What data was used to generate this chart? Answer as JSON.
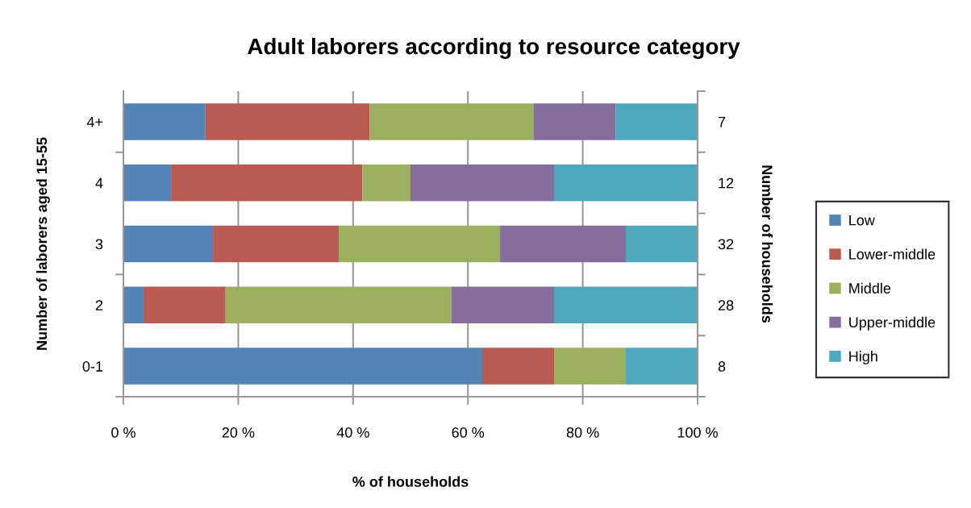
{
  "chart_data": {
    "type": "bar",
    "orientation": "horizontal",
    "stacked": true,
    "title": "Adult laborers according to resource category",
    "xlabel": "% of households",
    "ylabel": "Number of laborers aged 15-55",
    "y2label": "Number of households",
    "categories": [
      "4+",
      "4",
      "3",
      "2",
      "0-1"
    ],
    "y2_categories": [
      "7",
      "12",
      "32",
      "28",
      "8"
    ],
    "series": [
      {
        "name": "Low",
        "color": "#5484b6",
        "values": [
          14.3,
          8.3,
          15.6,
          3.5,
          62.5
        ]
      },
      {
        "name": "Lower-middle",
        "color": "#b95b52",
        "values": [
          28.6,
          33.3,
          21.9,
          14.3,
          12.5
        ]
      },
      {
        "name": "Middle",
        "color": "#9bb05e",
        "values": [
          28.5,
          8.4,
          28.1,
          39.3,
          12.5
        ]
      },
      {
        "name": "Upper-middle",
        "color": "#856d9e",
        "values": [
          14.3,
          25.0,
          21.9,
          17.9,
          null
        ]
      },
      {
        "name": "High",
        "color": "#4ea8bd",
        "values": [
          14.3,
          25.0,
          12.5,
          25.0,
          12.5
        ]
      }
    ],
    "xlim": [
      0,
      100
    ],
    "xticks": [
      {
        "value": 0,
        "label": "0 %"
      },
      {
        "value": 20,
        "label": "20 %"
      },
      {
        "value": 40,
        "label": "40 %"
      },
      {
        "value": 60,
        "label": "60 %"
      },
      {
        "value": 80,
        "label": "80 %"
      },
      {
        "value": 100,
        "label": "100 %"
      }
    ],
    "grid": "x",
    "legend": "right"
  }
}
